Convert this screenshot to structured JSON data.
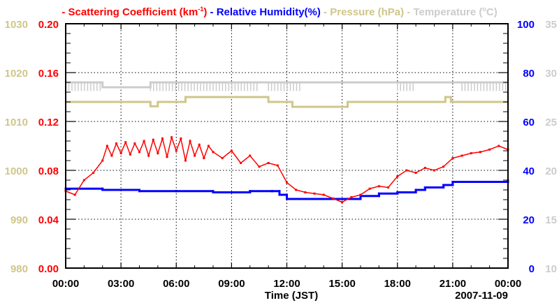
{
  "chart_data": {
    "type": "line",
    "title_parts": [
      {
        "text": "- Scattering Coefficient (km",
        "sup": "-1",
        "tail": ")",
        "color": "#ff0000"
      },
      {
        "text": " - Relative Humidity(%)",
        "color": "#0000ff"
      },
      {
        "text": " - Pressure (hPa)",
        "color": "#cfc68a"
      },
      {
        "text": " - Temperature (",
        "sup": "o",
        "tail": "C)",
        "color": "#cccccc"
      }
    ],
    "xlabel": "Time (JST)",
    "date_label": "2007-11-09",
    "xlim_hours": [
      0,
      24
    ],
    "x_ticks": [
      "00:00",
      "03:00",
      "06:00",
      "09:00",
      "12:00",
      "15:00",
      "18:00",
      "21:00",
      "00:00"
    ],
    "grid": true,
    "axes": {
      "pressure": {
        "ylim": [
          980,
          1030
        ],
        "ticks": [
          "980",
          "990",
          "1000",
          "1010",
          "1020",
          "1030"
        ],
        "color": "#cfc68a",
        "side": "left-outer"
      },
      "scattering": {
        "ylim": [
          0,
          0.2
        ],
        "ticks": [
          "0.00",
          "0.04",
          "0.08",
          "0.12",
          "0.16",
          "0.20"
        ],
        "color": "#ff0000",
        "side": "left"
      },
      "humidity": {
        "ylim": [
          0,
          100
        ],
        "ticks": [
          "0",
          "20",
          "40",
          "60",
          "80",
          "100"
        ],
        "color": "#0000ff",
        "side": "right"
      },
      "temperature": {
        "ylim": [
          10,
          35
        ],
        "ticks": [
          "10",
          "15",
          "20",
          "25",
          "30",
          "35"
        ],
        "color": "#cccccc",
        "side": "right-outer"
      }
    },
    "series": [
      {
        "name": "Scattering Coefficient",
        "axis": "scattering",
        "color": "#ff0000",
        "x": [
          0,
          0.5,
          1,
          1.5,
          2,
          2.25,
          2.5,
          2.75,
          3,
          3.25,
          3.5,
          3.75,
          4,
          4.25,
          4.5,
          4.75,
          5,
          5.25,
          5.5,
          5.75,
          6,
          6.25,
          6.5,
          6.75,
          7,
          7.25,
          7.5,
          7.75,
          8,
          8.5,
          9,
          9.5,
          10,
          10.5,
          11,
          11.5,
          12,
          12.5,
          13,
          13.5,
          14,
          14.5,
          15,
          15.5,
          16,
          16.5,
          17,
          17.5,
          18,
          18.5,
          19,
          19.5,
          20,
          20.5,
          21,
          21.5,
          22,
          22.5,
          23,
          23.5,
          24
        ],
        "values": [
          0.063,
          0.06,
          0.072,
          0.078,
          0.088,
          0.1,
          0.092,
          0.102,
          0.094,
          0.103,
          0.093,
          0.102,
          0.095,
          0.104,
          0.092,
          0.105,
          0.094,
          0.106,
          0.091,
          0.107,
          0.096,
          0.106,
          0.088,
          0.104,
          0.092,
          0.101,
          0.09,
          0.1,
          0.095,
          0.09,
          0.096,
          0.086,
          0.092,
          0.083,
          0.086,
          0.084,
          0.07,
          0.064,
          0.062,
          0.061,
          0.06,
          0.057,
          0.054,
          0.058,
          0.06,
          0.065,
          0.067,
          0.066,
          0.075,
          0.08,
          0.078,
          0.082,
          0.08,
          0.083,
          0.09,
          0.092,
          0.094,
          0.095,
          0.097,
          0.1,
          0.097
        ]
      },
      {
        "name": "Relative Humidity",
        "axis": "humidity",
        "color": "#0000ff",
        "x": [
          0,
          2,
          4,
          6,
          8,
          10,
          11.2,
          11.6,
          12,
          15.3,
          16,
          17,
          18,
          19,
          19.5,
          20.5,
          21,
          24
        ],
        "values": [
          32.5,
          32,
          31.5,
          31.5,
          31,
          31.5,
          31.5,
          30,
          28.3,
          28.3,
          29.5,
          30.5,
          31,
          32,
          33,
          34,
          35.3,
          35.8
        ]
      },
      {
        "name": "Pressure",
        "axis": "pressure",
        "color": "#cfc68a",
        "x": [
          0,
          4.6,
          4.6,
          5.0,
          5.0,
          6.5,
          6.5,
          11.0,
          11.0,
          12.3,
          12.3,
          15.3,
          15.3,
          20.6,
          20.6,
          20.9,
          20.9,
          24
        ],
        "values": [
          1014,
          1014,
          1013.1,
          1013.1,
          1014,
          1014,
          1015,
          1015,
          1014,
          1014,
          1013,
          1013,
          1014,
          1014,
          1015,
          1015,
          1014,
          1014
        ]
      },
      {
        "name": "Temperature",
        "axis": "temperature",
        "color": "#cccccc",
        "x": [
          0,
          2,
          2,
          4.6,
          4.6,
          12.3,
          12.3,
          24
        ],
        "values": [
          29,
          29,
          28.5,
          28.5,
          29,
          29,
          29,
          29
        ],
        "flicker_ranges_hours": [
          [
            0,
            2
          ],
          [
            4.6,
            10.5
          ],
          [
            11,
            12.8
          ],
          [
            18,
            19
          ],
          [
            21.5,
            24
          ]
        ],
        "flicker_low": 28.4
      }
    ]
  }
}
